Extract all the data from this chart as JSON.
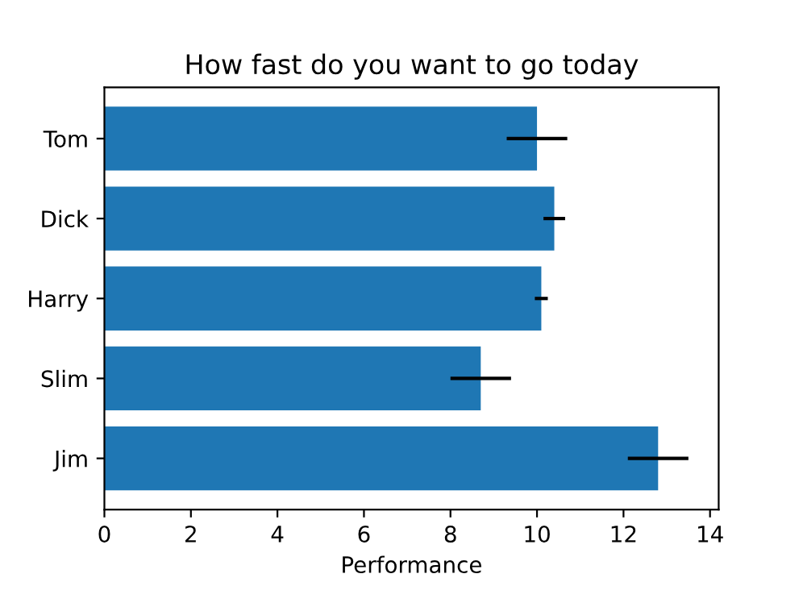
{
  "chart_data": {
    "type": "bar",
    "orientation": "horizontal",
    "title": "How fast do you want to go today",
    "xlabel": "Performance",
    "categories": [
      "Tom",
      "Dick",
      "Harry",
      "Slim",
      "Jim"
    ],
    "values": [
      10.0,
      10.4,
      10.1,
      8.7,
      12.8
    ],
    "errors": [
      0.7,
      0.25,
      0.15,
      0.7,
      0.7
    ],
    "color": "#1f77b4",
    "xlim": [
      0,
      14.2
    ],
    "xticks": [
      0,
      2,
      4,
      6,
      8,
      10,
      12,
      14
    ],
    "grid": false,
    "legend": false
  }
}
